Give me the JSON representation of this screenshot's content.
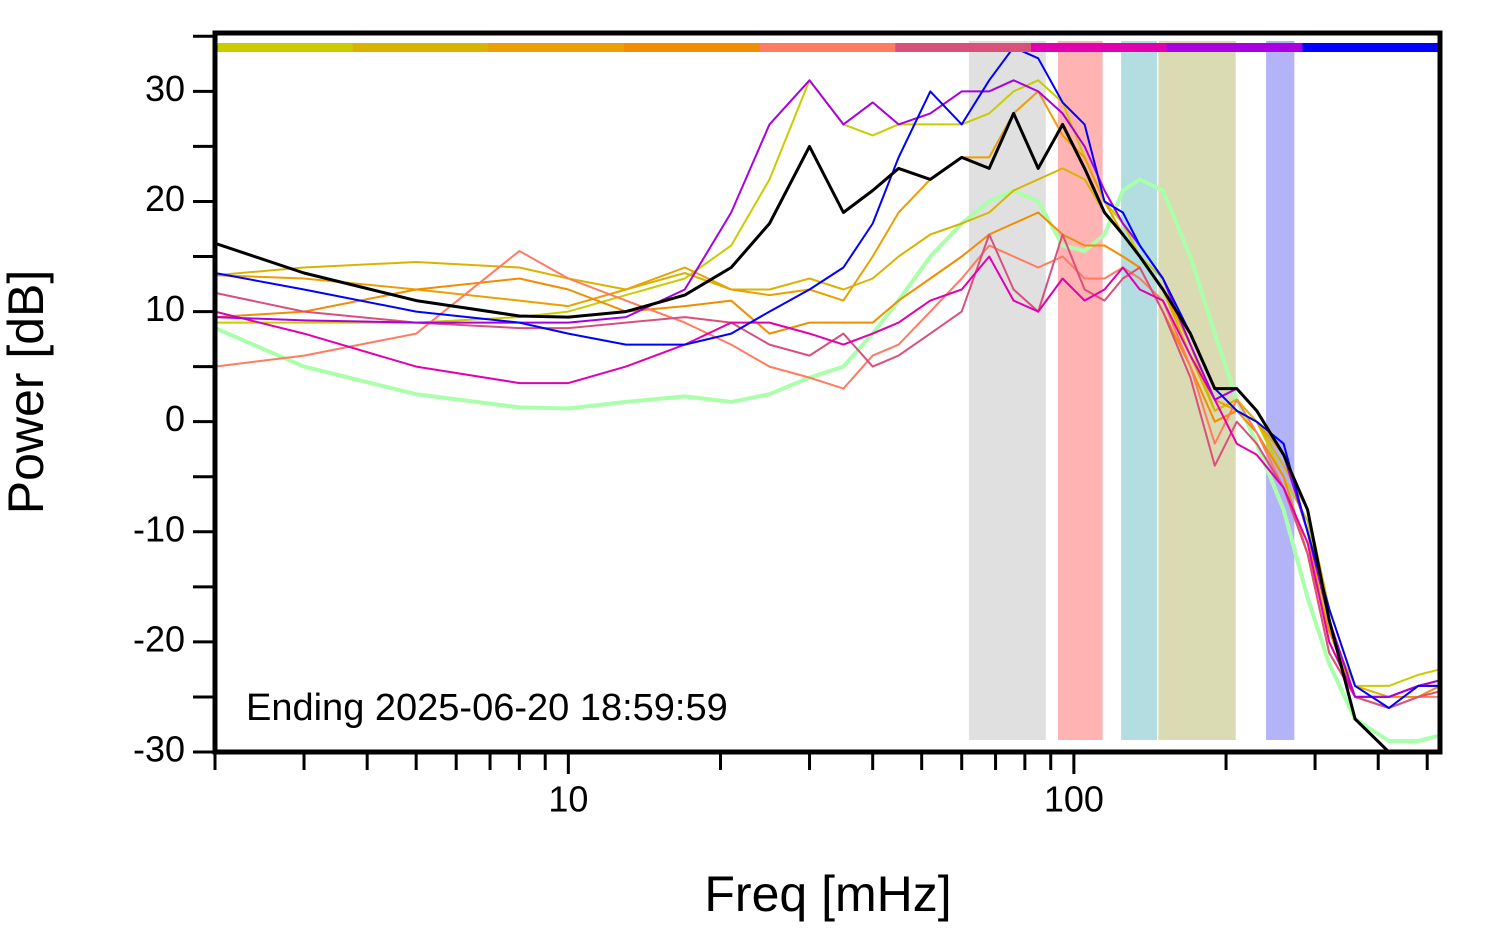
{
  "chart_data": {
    "type": "line",
    "xlabel": "Freq [mHz]",
    "ylabel": "Power [dB]",
    "annotation": "Ending 2025-06-20 18:59:59",
    "xscale": "log",
    "xlim": [
      2,
      530
    ],
    "ylim": [
      -30,
      35.3
    ],
    "xticks": [
      10,
      100
    ],
    "xminor_ticks": [
      2,
      3,
      4,
      5,
      6,
      7,
      8,
      9,
      20,
      30,
      40,
      50,
      60,
      70,
      80,
      90,
      200,
      300,
      400,
      500
    ],
    "yticks": [
      -30,
      -20,
      -10,
      0,
      10,
      20,
      30
    ],
    "yminor_ticks": [
      -25,
      -15,
      -5,
      5,
      15,
      25,
      35
    ],
    "strip_colors": [
      "#c8cc00",
      "#d8b400",
      "#eaa000",
      "#f28c00",
      "#ff7b62",
      "#d9507a",
      "#e000b0",
      "#a800e0",
      "#0000ff"
    ],
    "bands": [
      {
        "x0": 62,
        "x1": 88,
        "color": "#e0e0e0"
      },
      {
        "x0": 93,
        "x1": 114,
        "color": "#ffb3b3"
      },
      {
        "x0": 124,
        "x1": 146,
        "color": "#b3dde0"
      },
      {
        "x0": 147,
        "x1": 209,
        "color": "#dbdbb3"
      },
      {
        "x0": 240,
        "x1": 273,
        "color": "#b3b3f8"
      }
    ],
    "x": [
      2,
      3,
      5,
      8,
      10,
      13,
      17,
      21,
      25,
      30,
      35,
      40,
      45,
      52,
      60,
      68,
      76,
      85,
      95,
      105,
      115,
      125,
      135,
      150,
      170,
      190,
      210,
      230,
      260,
      290,
      320,
      360,
      420,
      480,
      530
    ],
    "series": [
      {
        "color": "#aaffaa",
        "width": 4,
        "values": [
          8.5,
          5,
          2.5,
          1.3,
          1.2,
          1.8,
          2.3,
          1.8,
          2.5,
          4,
          5,
          8,
          11,
          15,
          18,
          20,
          21,
          20,
          16,
          15.5,
          17,
          21,
          22,
          21,
          15,
          8,
          2,
          -2,
          -8,
          -16,
          -22,
          -27,
          -29,
          -29,
          -28.5
        ]
      },
      {
        "color": "#c8cc00",
        "width": 2,
        "values": [
          9,
          9,
          9,
          9.5,
          10,
          11.5,
          13,
          16,
          22,
          31,
          27,
          26,
          27,
          27,
          27,
          28,
          30,
          31,
          29,
          24,
          20,
          18,
          15,
          13,
          7,
          1,
          2,
          0,
          -5,
          -9,
          -19,
          -24,
          -24,
          -23,
          -22.5
        ]
      },
      {
        "color": "#d8b400",
        "width": 2,
        "values": [
          13.3,
          14,
          14.5,
          14,
          13,
          12,
          13.5,
          12,
          12,
          13,
          12,
          13,
          15,
          17,
          18,
          19,
          21,
          22,
          23,
          22,
          19,
          17,
          15,
          12,
          6,
          1,
          2,
          0,
          -4,
          -8,
          -17,
          -24,
          -25,
          -24,
          -23.5
        ]
      },
      {
        "color": "#eaa000",
        "width": 2,
        "values": [
          13.3,
          13,
          12,
          11,
          10.5,
          12,
          14,
          12,
          11.5,
          12,
          11,
          15,
          19,
          22,
          24,
          24,
          28,
          30,
          26,
          24,
          20,
          17,
          15,
          12,
          7,
          2,
          1,
          0,
          -3,
          -10,
          -20,
          -25,
          -25,
          -24,
          -24
        ]
      },
      {
        "color": "#f28c00",
        "width": 2,
        "values": [
          9.5,
          10,
          12,
          13,
          12,
          10,
          10.5,
          11,
          8,
          9,
          9,
          9,
          11,
          13,
          15,
          17,
          18,
          19,
          17,
          16,
          16,
          15,
          14,
          10,
          5,
          0,
          1,
          -1,
          -5,
          -12,
          -19,
          -25,
          -25,
          -25,
          -24
        ]
      },
      {
        "color": "#ff7b62",
        "width": 2,
        "values": [
          5,
          6,
          8,
          15.5,
          13,
          11,
          9,
          7,
          5,
          4,
          3,
          6,
          7,
          10,
          13,
          16,
          15,
          14,
          15,
          13,
          13,
          14,
          13,
          11,
          5,
          -2,
          2,
          -1,
          -6,
          -12,
          -21,
          -25,
          -26,
          -25,
          -25
        ]
      },
      {
        "color": "#d9507a",
        "width": 2,
        "values": [
          11.7,
          10,
          9,
          8.5,
          8.5,
          9,
          9.5,
          9,
          7,
          6,
          8,
          5,
          6,
          8,
          10,
          17,
          12,
          10,
          17,
          12,
          11,
          13,
          14,
          10,
          4,
          -4,
          0,
          -2,
          -6,
          -12,
          -21,
          -25,
          -26,
          -25,
          -24.5
        ]
      },
      {
        "color": "#e000b0",
        "width": 2,
        "values": [
          10,
          8,
          5,
          3.5,
          3.5,
          5,
          7,
          9,
          9,
          8,
          7,
          8,
          9,
          11,
          12,
          15,
          11,
          10,
          13,
          11,
          12,
          14,
          12,
          11,
          6,
          2,
          -2,
          -3,
          -6,
          -11,
          -20,
          -25,
          -25,
          -24,
          -24
        ]
      },
      {
        "color": "#a800e0",
        "width": 2,
        "values": [
          9.5,
          9.2,
          9,
          9,
          9,
          9.5,
          12,
          19,
          27,
          31,
          27,
          29,
          27,
          28,
          30,
          30,
          31,
          30,
          28,
          25,
          21,
          18,
          16,
          13,
          7,
          2,
          3,
          1,
          -3,
          -10,
          -18,
          -25,
          -25,
          -24,
          -23.5
        ]
      },
      {
        "color": "#0000ff",
        "width": 2,
        "values": [
          13.5,
          12,
          10,
          9,
          8,
          7,
          7,
          8,
          10,
          12,
          14,
          18,
          24,
          30,
          27,
          31,
          34,
          33,
          29,
          27,
          20,
          19,
          16,
          13,
          8,
          3,
          1,
          0,
          -2,
          -10,
          -17,
          -24,
          -26,
          -24,
          -24
        ]
      },
      {
        "color": "#000000",
        "width": 3,
        "values": [
          16.2,
          13.5,
          11,
          9.6,
          9.5,
          10,
          11.5,
          14,
          18,
          25,
          19,
          21,
          23,
          22,
          24,
          23,
          28,
          23,
          27,
          23,
          19,
          17,
          15,
          12,
          8,
          3,
          3,
          1,
          -3,
          -8,
          -18,
          -27,
          -30,
          null,
          null
        ]
      }
    ]
  }
}
